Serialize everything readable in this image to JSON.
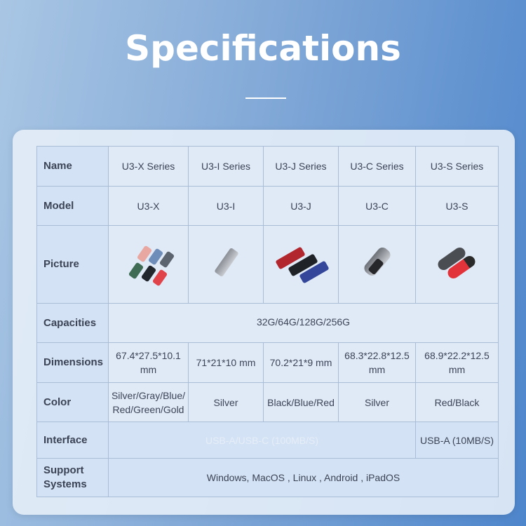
{
  "title": "Specifications",
  "table": {
    "rows": {
      "name": {
        "label": "Name",
        "values": [
          "U3-X Series",
          "U3-I Series",
          "U3-J Series",
          "U3-C Series",
          "U3-S Series"
        ]
      },
      "model": {
        "label": "Model",
        "values": [
          "U3-X",
          "U3-I",
          "U3-J",
          "U3-C",
          "U3-S"
        ]
      },
      "picture": {
        "label": "Picture",
        "icons": [
          "multi-color-usb-drives",
          "silver-usb-drive",
          "red-black-blue-usb-drives",
          "silver-black-usb-drive",
          "red-black-usb-drives"
        ]
      },
      "capacities": {
        "label": "Capacities",
        "value": "32G/64G/128G/256G"
      },
      "dimensions": {
        "label": "Dimensions",
        "values": [
          "67.4*27.5*10.1 mm",
          "71*21*10 mm",
          "70.2*21*9 mm",
          "68.3*22.8*12.5 mm",
          "68.9*22.2*12.5 mm"
        ]
      },
      "color": {
        "label": "Color",
        "values": [
          "Silver/Gray/Blue/Red/Green/Gold",
          "Silver",
          "Black/Blue/Red",
          "Silver",
          "Red/Black"
        ]
      },
      "interface": {
        "label": "Interface",
        "values": [
          "USB-A/USB-C (100MB/S)",
          "USB-A (10MB/S)"
        ]
      },
      "support": {
        "label": "Support Systems",
        "value": "Windows, MacOS , Linux , Android ,  iPadOS"
      }
    }
  }
}
